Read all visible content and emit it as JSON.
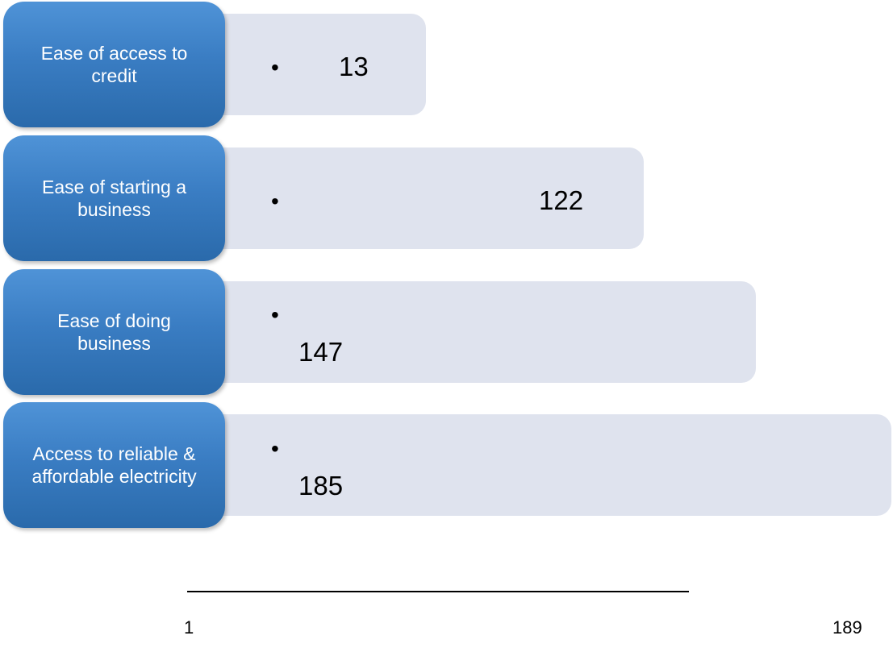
{
  "rows": [
    {
      "label": "Ease of access to credit",
      "value": "13"
    },
    {
      "label": "Ease of starting a business",
      "value": "122"
    },
    {
      "label": "Ease of doing business",
      "value": "147"
    },
    {
      "label": "Access to reliable & affordable electricity",
      "value": "185"
    }
  ],
  "axis": {
    "min_label": "1",
    "max_label": "189"
  },
  "colors": {
    "label_box": "#3a7dc3",
    "bar": "#dfe3ee"
  }
}
